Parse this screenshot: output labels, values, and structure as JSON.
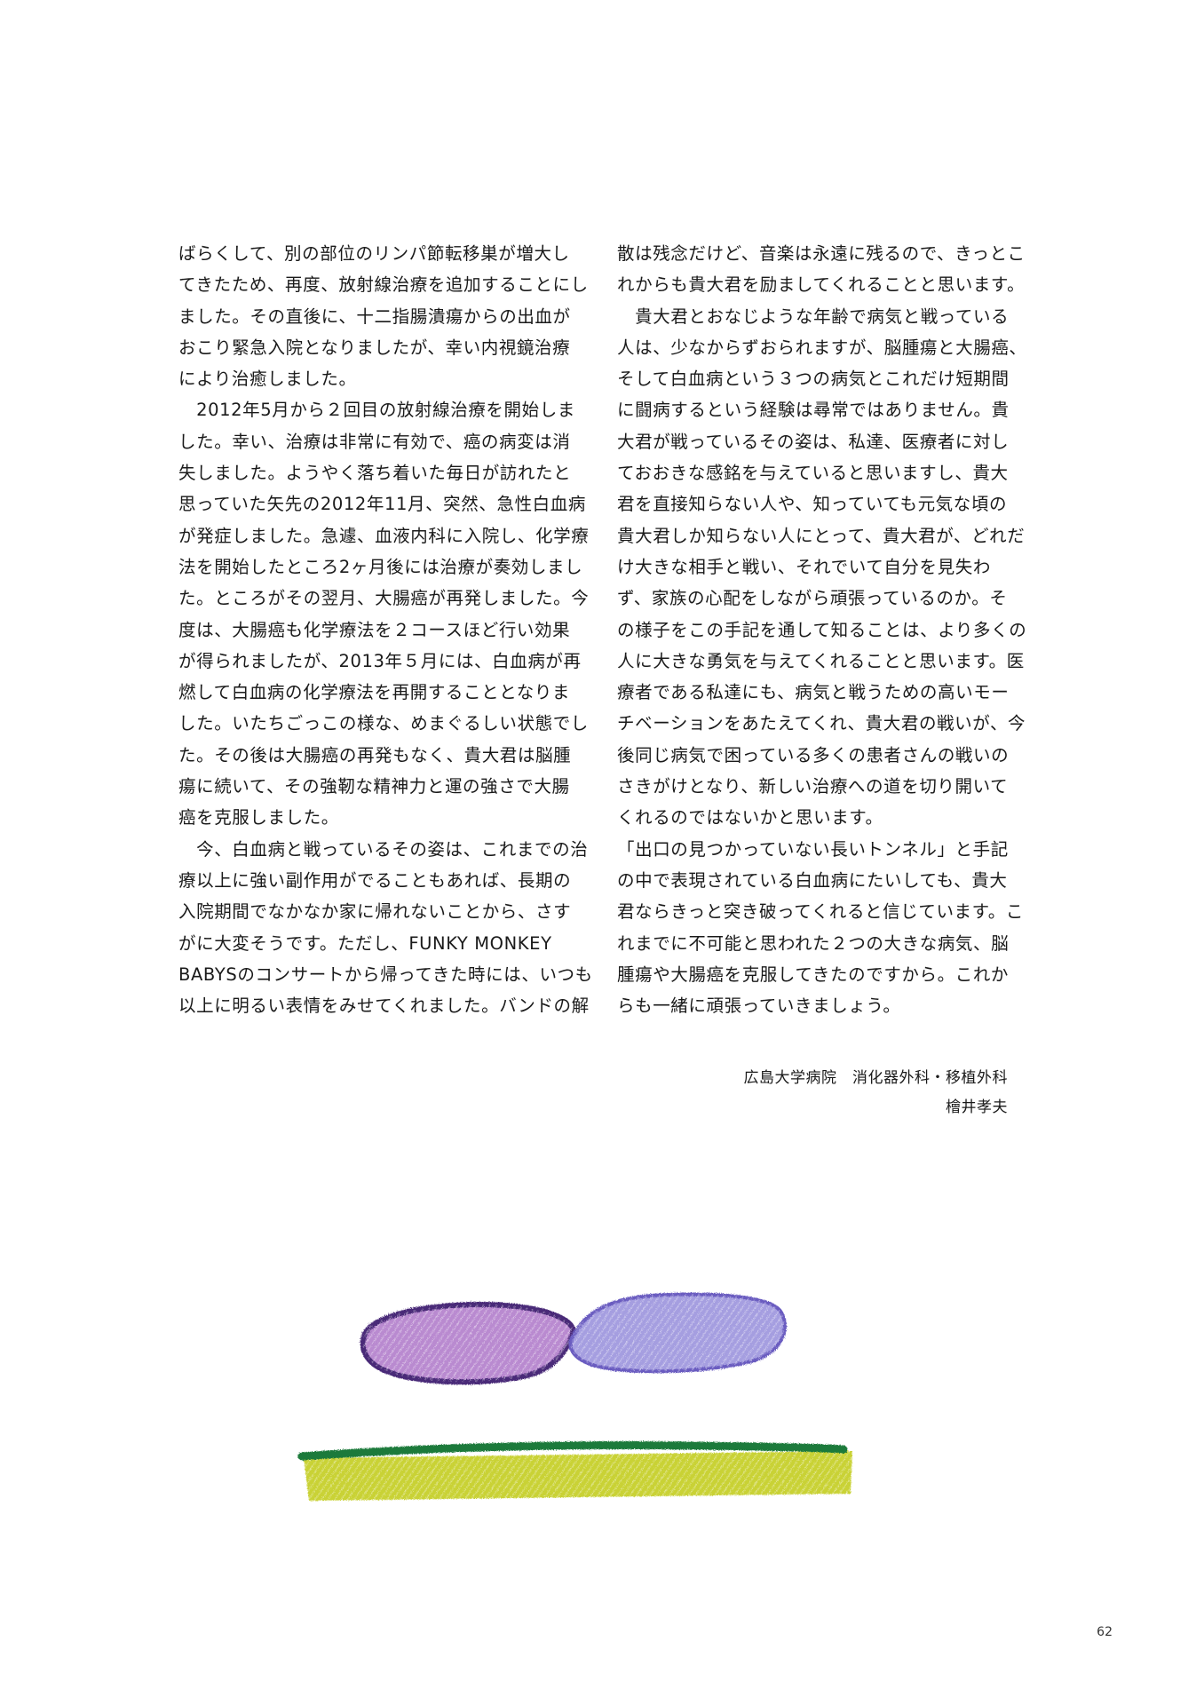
{
  "left_column": [
    "ばらくして、別の部位のリンパ節転移巣が増大し",
    "てきたため、再度、放射線治療を追加することにし",
    "ました。その直後に、十二指腸潰瘍からの出血が",
    "おこり緊急入院となりましたが、幸い内視鏡治療",
    "により治癒しました。",
    "　2012年5月から２回目の放射線治療を開始しま",
    "した。幸い、治療は非常に有効で、癌の病変は消",
    "失しました。ようやく落ち着いた毎日が訪れたと",
    "思っていた矢先の2012年11月、突然、急性白血病",
    "が発症しました。急遽、血液内科に入院し、化学療",
    "法を開始したところ2ヶ月後には治療が奏効しまし",
    "た。ところがその翌月、大腸癌が再発しました。今",
    "度は、大腸癌も化学療法を２コースほど行い効果",
    "が得られましたが、2013年５月には、白血病が再",
    "燃して白血病の化学療法を再開することとなりま",
    "した。いたちごっこの様な、めまぐるしい状態でし",
    "た。その後は大腸癌の再発もなく、貴大君は脳腫",
    "瘍に続いて、その強靭な精神力と運の強さで大腸",
    "癌を克服しました。",
    "　今、白血病と戦っているその姿は、これまでの治",
    "療以上に強い副作用がでることもあれば、長期の",
    "入院期間でなかなか家に帰れないことから、さす",
    "がに大変そうです。ただし、FUNKY MONKEY",
    "BABYSのコンサートから帰ってきた時には、いつも",
    "以上に明るい表情をみせてくれました。バンドの解"
  ],
  "right_column": [
    "散は残念だけど、音楽は永遠に残るので、きっとこ",
    "れからも貴大君を励ましてくれることと思います。",
    "　貴大君とおなじような年齢で病気と戦っている",
    "人は、少なからずおられますが、脳腫瘍と大腸癌、",
    "そして白血病という３つの病気とこれだけ短期間",
    "に闘病するという経験は尋常ではありません。貴",
    "大君が戦っているその姿は、私達、医療者に対し",
    "ておおきな感銘を与えていると思いますし、貴大",
    "君を直接知らない人や、知っていても元気な頃の",
    "貴大君しか知らない人にとって、貴大君が、どれだ",
    "け大きな相手と戦い、それでいて自分を見失わ",
    "ず、家族の心配をしながら頑張っているのか。そ",
    "の様子をこの手記を通して知ることは、より多くの",
    "人に大きな勇気を与えてくれることと思います。医",
    "療者である私達にも、病気と戦うための高いモー",
    "チベーションをあたえてくれ、貴大君の戦いが、今",
    "後同じ病気で困っている多くの患者さんの戦いの",
    "さきがけとなり、新しい治療への道を切り開いて",
    "くれるのではないかと思います。",
    "「出口の見つかっていない長いトンネル」と手記",
    "の中で表現されている白血病にたいしても、貴大",
    "君ならきっと突き破ってくれると信じています。こ",
    "れまでに不可能と思われた２つの大きな病気、脳",
    "腫瘍や大腸癌を克服してきたのですから。これか",
    "らも一緒に頑張っていきましょう。"
  ],
  "signature": {
    "affiliation": "広島大学病院　消化器外科・移植外科",
    "name": "檜井孝夫"
  },
  "page_number": "62",
  "colors": {
    "left_stone": "#b98ad0",
    "left_stone_outline": "#4a2a78",
    "right_stone": "#a59ee0",
    "right_stone_outline": "#6a5cc0",
    "grass_green": "#1e7a3a",
    "grass_yellow": "#c9d236"
  }
}
